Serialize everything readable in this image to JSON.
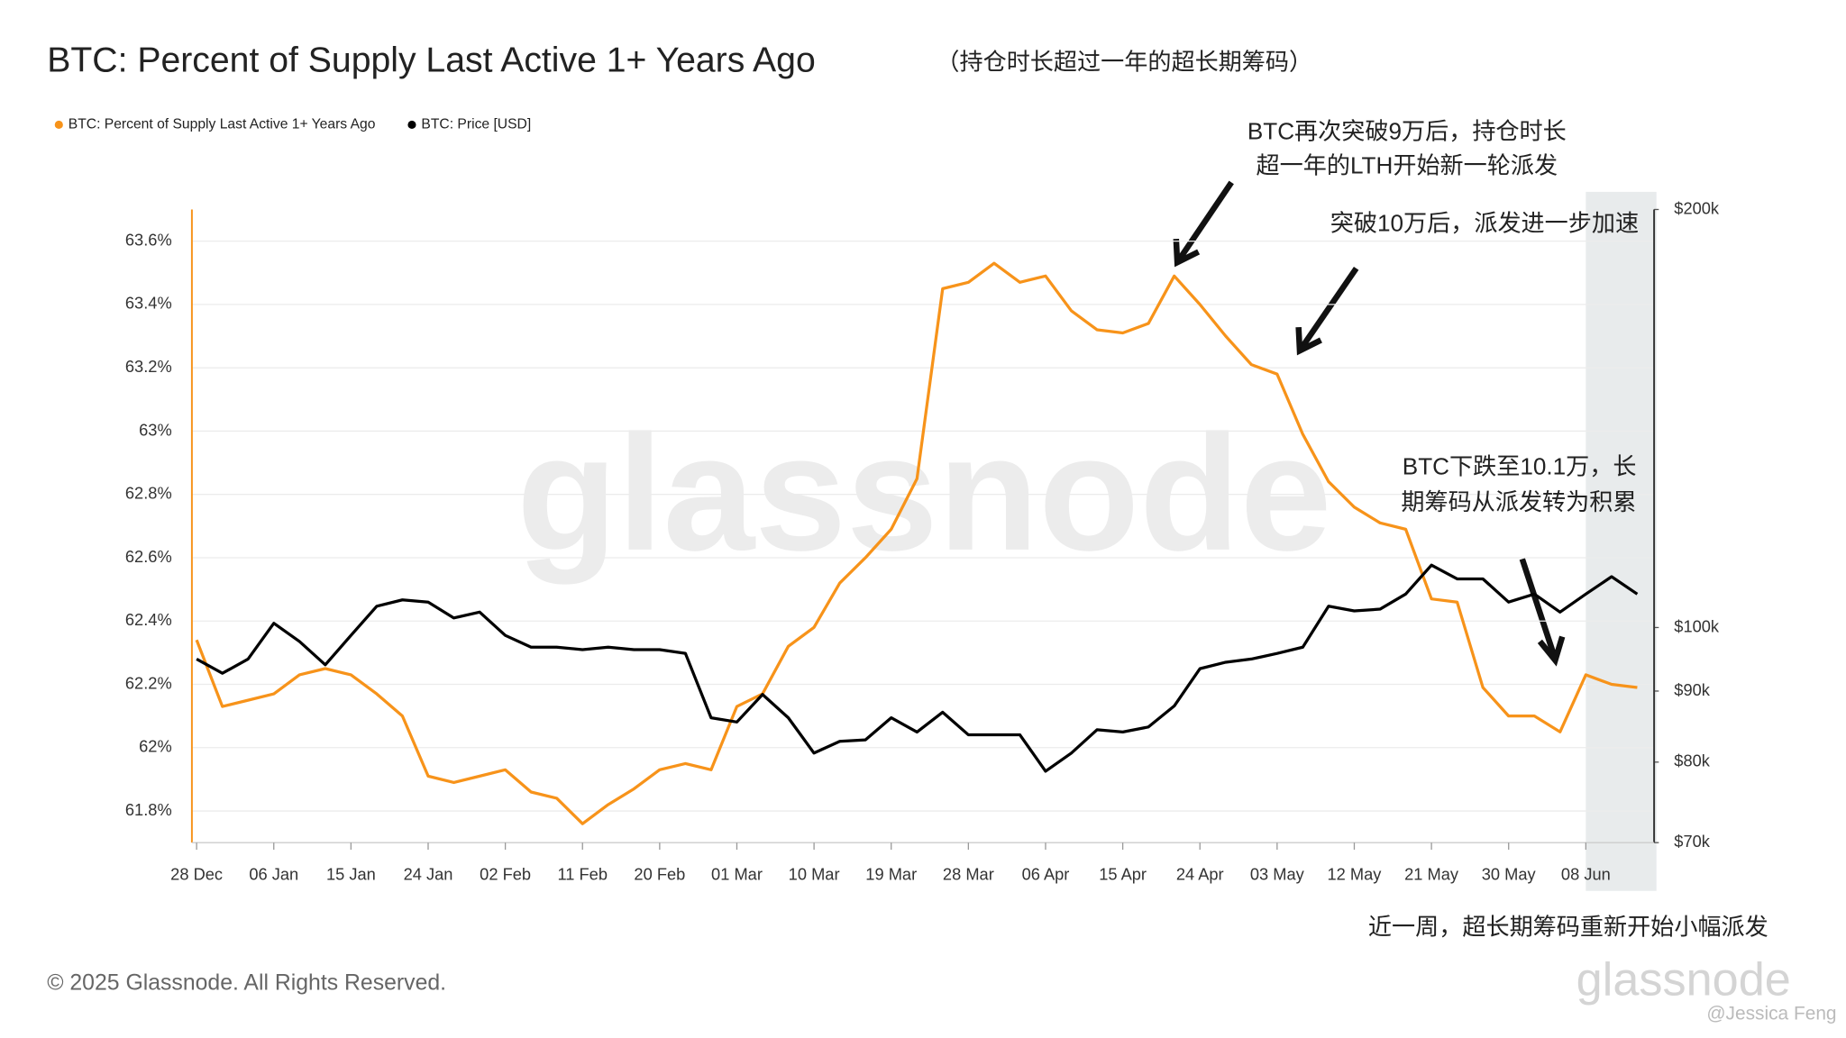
{
  "chart_data": {
    "type": "line",
    "title": "BTC: Percent of Supply Last Active 1+ Years Ago",
    "subtitle": "（持仓时长超过一年的超长期筹码）",
    "categories": [
      "28 Dec",
      null,
      null,
      "06 Jan",
      null,
      null,
      "15 Jan",
      null,
      null,
      "24 Jan",
      null,
      null,
      "02 Feb",
      null,
      null,
      "11 Feb",
      null,
      null,
      "20 Feb",
      null,
      null,
      "01 Mar",
      null,
      null,
      "10 Mar",
      null,
      null,
      "19 Mar",
      null,
      null,
      "28 Mar",
      null,
      null,
      "06 Apr",
      null,
      null,
      "15 Apr",
      null,
      null,
      "24 Apr",
      null,
      null,
      "03 May",
      null,
      null,
      "12 May",
      null,
      null,
      "21 May",
      null,
      null,
      "30 May",
      null,
      null,
      "08 Jun",
      null,
      null
    ],
    "series": [
      {
        "name": "BTC: Percent of Supply Last Active 1+ Years Ago",
        "color": "#f7931a",
        "axis": "y",
        "values": [
          62.34,
          62.13,
          62.15,
          62.17,
          62.23,
          62.25,
          62.23,
          62.17,
          62.1,
          61.91,
          61.89,
          61.91,
          61.93,
          61.86,
          61.84,
          61.76,
          61.82,
          61.87,
          61.93,
          61.95,
          61.93,
          62.13,
          62.17,
          62.32,
          62.38,
          62.52,
          62.6,
          62.69,
          62.85,
          63.45,
          63.47,
          63.53,
          63.47,
          63.49,
          63.38,
          63.32,
          63.31,
          63.34,
          63.49,
          63.4,
          63.3,
          63.21,
          63.18,
          62.99,
          62.84,
          62.76,
          62.71,
          62.69,
          62.47,
          62.46,
          62.19,
          62.1,
          62.1,
          62.05,
          62.23,
          62.2,
          62.19
        ]
      },
      {
        "name": "BTC: Price [USD]",
        "color": "#000000",
        "axis": "y2",
        "values": [
          94900,
          92700,
          94900,
          100700,
          97700,
          94000,
          98700,
          103600,
          104700,
          104300,
          101600,
          102600,
          98700,
          96800,
          96800,
          96400,
          96800,
          96400,
          96400,
          95800,
          86100,
          85500,
          89500,
          86100,
          81200,
          82800,
          83000,
          86100,
          84100,
          86900,
          83700,
          83700,
          83700,
          78800,
          81200,
          84400,
          84100,
          84800,
          87800,
          93400,
          94400,
          94900,
          95800,
          96800,
          103600,
          102800,
          103100,
          105700,
          110900,
          108400,
          108400,
          104300,
          105700,
          102600,
          105700,
          108800,
          105700
        ]
      }
    ],
    "ylim": [
      61.7,
      63.7
    ],
    "yticks": [
      {
        "value": 61.8,
        "label": "61.8%"
      },
      {
        "value": 62,
        "label": "62%"
      },
      {
        "value": 62.2,
        "label": "62.2%"
      },
      {
        "value": 62.4,
        "label": "62.4%"
      },
      {
        "value": 62.6,
        "label": "62.6%"
      },
      {
        "value": 62.8,
        "label": "62.8%"
      },
      {
        "value": 63,
        "label": "63%"
      },
      {
        "value": 63.2,
        "label": "63.2%"
      },
      {
        "value": 63.4,
        "label": "63.4%"
      },
      {
        "value": 63.6,
        "label": "63.6%"
      }
    ],
    "y2lim": [
      70000,
      200000
    ],
    "y2log": true,
    "y2ticks": [
      {
        "value": 70000,
        "label": "$70k"
      },
      {
        "value": 80000,
        "label": "$80k"
      },
      {
        "value": 90000,
        "label": "$90k"
      },
      {
        "value": 100000,
        "label": "$100k"
      },
      {
        "value": 200000,
        "label": "$200k"
      }
    ],
    "grid": true,
    "legend": "top-left",
    "annotations": [
      "BTC再次突破9万后，持仓时长",
      "超一年的LTH开始新一轮派发",
      "突破10万后，派发进一步加速",
      "BTC下跌至10.1万，长",
      "期筹码从派发转为积累",
      "近一周，超长期筹码重新开始小幅派发"
    ]
  },
  "watermark": "glassnode",
  "footer": "© 2025 Glassnode. All Rights Reserved.",
  "logo": "glassnode",
  "credit": "@Jessica Feng"
}
